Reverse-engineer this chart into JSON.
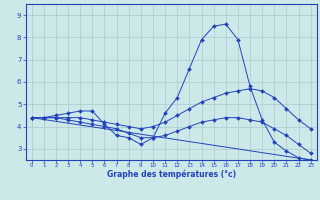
{
  "xlabel": "Graphe des températures (°c)",
  "background_color": "#cce8e8",
  "line_color": "#2244bb",
  "grid_color": "#aacccc",
  "xlim": [
    -0.5,
    23.5
  ],
  "ylim": [
    2.5,
    9.5
  ],
  "xticks": [
    0,
    1,
    2,
    3,
    4,
    5,
    6,
    7,
    8,
    9,
    10,
    11,
    12,
    13,
    14,
    15,
    16,
    17,
    18,
    19,
    20,
    21,
    22,
    23
  ],
  "yticks": [
    3,
    4,
    5,
    6,
    7,
    8,
    9
  ],
  "series": [
    {
      "x": [
        0,
        1,
        2,
        3,
        4,
        5,
        6,
        7,
        8,
        9,
        10,
        11,
        12,
        13,
        14,
        15,
        16,
        17,
        18,
        19,
        20,
        21,
        22,
        23
      ],
      "y": [
        4.4,
        4.4,
        4.5,
        4.6,
        4.7,
        4.7,
        4.1,
        3.6,
        3.5,
        3.2,
        3.5,
        4.6,
        5.3,
        6.6,
        7.9,
        8.5,
        8.6,
        7.9,
        5.8,
        4.3,
        3.3,
        2.9,
        2.6,
        2.5
      ],
      "markers": true
    },
    {
      "x": [
        0,
        1,
        2,
        3,
        4,
        5,
        6,
        7,
        8,
        9,
        10,
        11,
        12,
        13,
        14,
        15,
        16,
        17,
        18,
        19,
        20,
        21,
        22,
        23
      ],
      "y": [
        4.4,
        4.4,
        4.4,
        4.4,
        4.4,
        4.3,
        4.2,
        4.1,
        4.0,
        3.9,
        4.0,
        4.2,
        4.5,
        4.8,
        5.1,
        5.3,
        5.5,
        5.6,
        5.7,
        5.6,
        5.3,
        4.8,
        4.3,
        3.9
      ],
      "markers": true
    },
    {
      "x": [
        0,
        1,
        2,
        3,
        4,
        5,
        6,
        7,
        8,
        9,
        10,
        11,
        12,
        13,
        14,
        15,
        16,
        17,
        18,
        19,
        20,
        21,
        22,
        23
      ],
      "y": [
        4.4,
        4.4,
        4.4,
        4.3,
        4.2,
        4.1,
        4.0,
        3.9,
        3.7,
        3.5,
        3.5,
        3.6,
        3.8,
        4.0,
        4.2,
        4.3,
        4.4,
        4.4,
        4.3,
        4.2,
        3.9,
        3.6,
        3.2,
        2.8
      ],
      "markers": true
    },
    {
      "x": [
        0,
        23
      ],
      "y": [
        4.4,
        2.5
      ],
      "markers": false
    }
  ]
}
